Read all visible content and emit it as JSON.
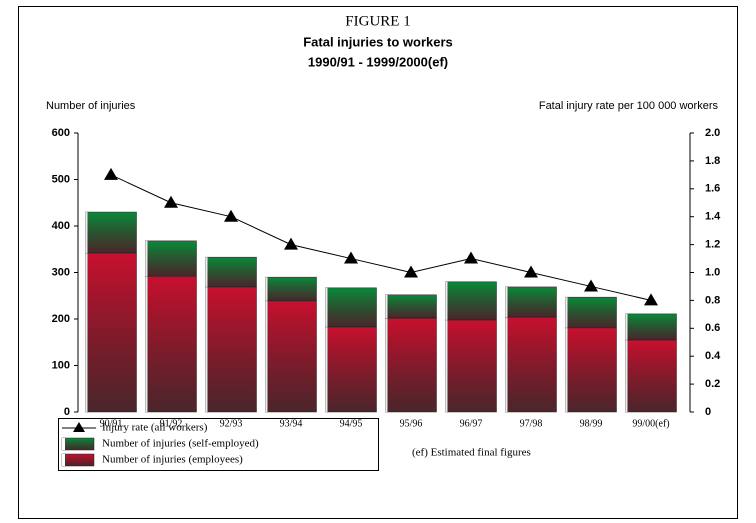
{
  "chart_data": {
    "type": "bar",
    "figure": "FIGURE 1",
    "title": "Fatal injuries to workers",
    "subtitle": "1990/91 - 1999/2000(ef)",
    "ylabel": "Number of injuries",
    "y2label": "Fatal injury rate per 100 000 workers",
    "note": "(ef) Estimated final figures",
    "categories": [
      "90/91",
      "91/92",
      "92/93",
      "93/94",
      "94/95",
      "95/96",
      "96/97",
      "97/98",
      "98/99",
      "99/00(ef)"
    ],
    "series": [
      {
        "name": "Number of injuries (employees)",
        "color": "#c8102e",
        "values": [
          342,
          292,
          269,
          239,
          183,
          202,
          198,
          204,
          181,
          155
        ]
      },
      {
        "name": "Number of injuries (self-employed)",
        "color": "#0a8a3a",
        "values": [
          88,
          76,
          64,
          51,
          84,
          50,
          82,
          65,
          66,
          56
        ]
      },
      {
        "name": "Injury rate (all workers)",
        "color": "#000000",
        "axis": "y2",
        "values": [
          1.7,
          1.5,
          1.4,
          1.2,
          1.1,
          1.0,
          1.1,
          1.0,
          0.9,
          0.8
        ]
      }
    ],
    "ylim": [
      0,
      600
    ],
    "yticks": [
      0,
      100,
      200,
      300,
      400,
      500,
      600
    ],
    "y2lim": [
      0,
      2
    ],
    "y2ticks": [
      0,
      0.2,
      0.4,
      0.6,
      0.8,
      {
        "value": 1,
        "label": "1.0"
      },
      1.2,
      1.4,
      1.6,
      1.8,
      {
        "value": 2,
        "label": "2.0"
      }
    ]
  }
}
